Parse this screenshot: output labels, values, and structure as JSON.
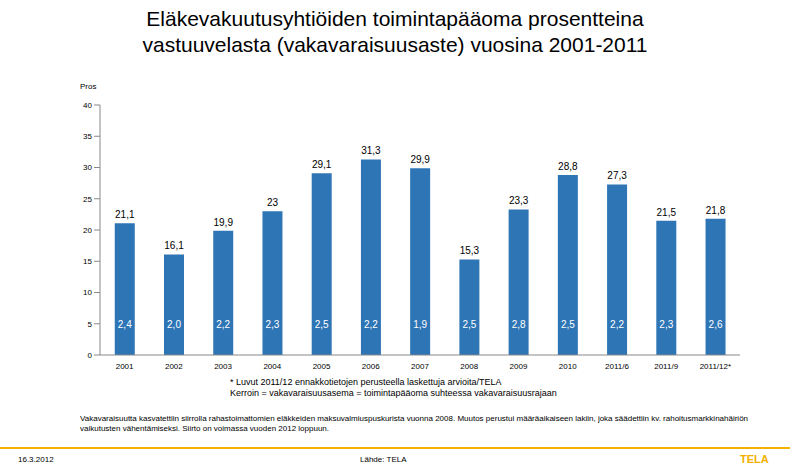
{
  "chart_data": {
    "type": "bar",
    "title": "Eläkevakuutusyhtiöiden toimintapääoma prosentteina\nvastuuvelasta (vakavaraisuusaste) vuosina 2001-2011",
    "y_label": "Pros",
    "categories": [
      "2001",
      "2002",
      "2003",
      "2004",
      "2005",
      "2006",
      "2007",
      "2008",
      "2009",
      "2010",
      "2011/6",
      "2011/9",
      "2011/12*"
    ],
    "values": [
      21.1,
      16.1,
      19.9,
      23,
      29.1,
      31.3,
      29.9,
      15.3,
      23.3,
      28.8,
      27.3,
      21.5,
      21.8
    ],
    "value_labels": [
      "21,1",
      "16,1",
      "19,9",
      "23",
      "29,1",
      "31,3",
      "29,9",
      "15,3",
      "23,3",
      "28,8",
      "27,3",
      "21,5",
      "21,8"
    ],
    "kerroin": {
      "values": [
        2.4,
        2.0,
        2.2,
        2.3,
        2.5,
        2.2,
        1.9,
        2.5,
        2.8,
        2.5,
        2.2,
        2.3,
        2.6
      ],
      "value_labels": [
        "2,4",
        "2,0",
        "2,2",
        "2,3",
        "2,5",
        "2,2",
        "1,9",
        "2,5",
        "2,8",
        "2,5",
        "2,2",
        "2,3",
        "2,6"
      ]
    },
    "color": "#2e75b6",
    "ylim": [
      0,
      40
    ],
    "yticks": [
      0,
      5,
      10,
      15,
      20,
      25,
      30,
      35,
      40
    ],
    "grid": false,
    "data_labels": true
  },
  "notes": [
    "* Luvut 2011/12 ennakkotietojen perusteella laskettuja arvioita/TELA",
    "Kerroin = vakavaraisuusasema = toimintapääoma suhteessa vakavaraisuusrajaan"
  ],
  "footnote": "Vakavaraisuutta kasvatettiin siirrolla rahastoimattomien eläkkeiden maksuvalmiuspuskurista vuonna 2008. Muutos perustui määräaikaiseen lakiin, joka säädettiin kv. rahoitusmarkkinahäiriön vaikutusten vähentämiseksi. Siirto on voimassa vuoden 2012 loppuun.",
  "footer": {
    "date": "16.3.2012",
    "source": "Lähde: TELA",
    "logo": "TELA"
  }
}
